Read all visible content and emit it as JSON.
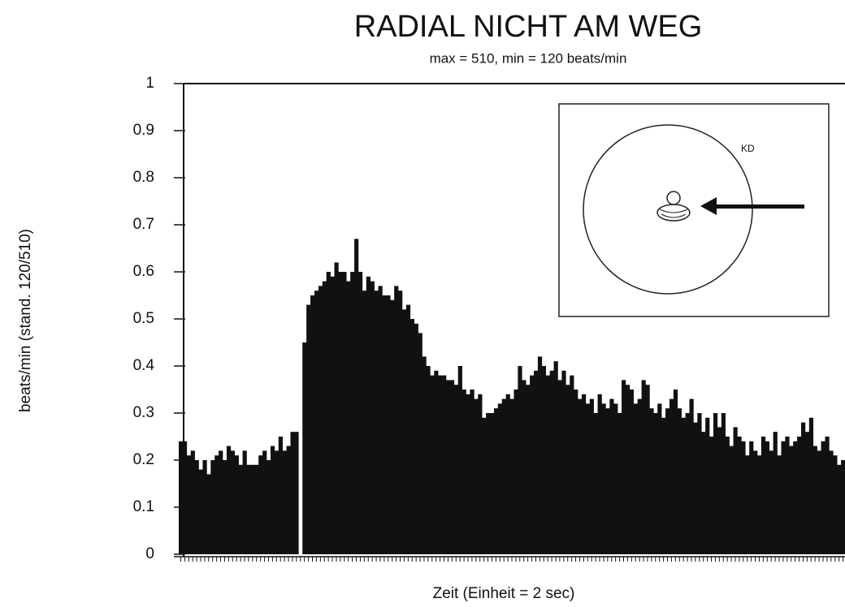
{
  "chart_data": {
    "type": "bar",
    "title": "RADIAL NICHT AM WEG",
    "subtitle": "max = 510, min = 120 beats/min",
    "x_label": "Zeit (Einheit = 2 sec)",
    "y_label": "beats/min (stand. 120/510)",
    "annotation": "KD",
    "color": "#111111",
    "ylim": [
      0,
      1
    ],
    "yticks": [
      0,
      0.1,
      0.2,
      0.3,
      0.4,
      0.5,
      0.6,
      0.7,
      0.8,
      0.9,
      1
    ],
    "values": [
      0.24,
      0.24,
      0.21,
      0.22,
      0.2,
      0.18,
      0.2,
      0.17,
      0.2,
      0.21,
      0.22,
      0.2,
      0.23,
      0.22,
      0.21,
      0.19,
      0.22,
      0.19,
      0.19,
      0.19,
      0.21,
      0.22,
      0.2,
      0.23,
      0.22,
      0.25,
      0.22,
      0.23,
      0.26,
      0.26,
      0,
      0.45,
      0.53,
      0.55,
      0.56,
      0.57,
      0.58,
      0.6,
      0.59,
      0.62,
      0.6,
      0.6,
      0.58,
      0.6,
      0.67,
      0.6,
      0.56,
      0.59,
      0.58,
      0.56,
      0.57,
      0.55,
      0.55,
      0.54,
      0.57,
      0.56,
      0.52,
      0.53,
      0.5,
      0.49,
      0.47,
      0.42,
      0.4,
      0.38,
      0.39,
      0.38,
      0.38,
      0.37,
      0.37,
      0.36,
      0.4,
      0.35,
      0.34,
      0.35,
      0.33,
      0.34,
      0.29,
      0.3,
      0.3,
      0.31,
      0.32,
      0.33,
      0.34,
      0.33,
      0.35,
      0.4,
      0.37,
      0.36,
      0.38,
      0.39,
      0.42,
      0.4,
      0.38,
      0.39,
      0.41,
      0.37,
      0.39,
      0.36,
      0.38,
      0.35,
      0.33,
      0.34,
      0.32,
      0.33,
      0.3,
      0.34,
      0.32,
      0.31,
      0.33,
      0.32,
      0.3,
      0.37,
      0.36,
      0.35,
      0.32,
      0.33,
      0.37,
      0.36,
      0.31,
      0.3,
      0.32,
      0.29,
      0.31,
      0.33,
      0.35,
      0.31,
      0.29,
      0.3,
      0.33,
      0.28,
      0.3,
      0.26,
      0.29,
      0.25,
      0.3,
      0.27,
      0.3,
      0.25,
      0.23,
      0.27,
      0.25,
      0.24,
      0.21,
      0.24,
      0.22,
      0.21,
      0.25,
      0.24,
      0.22,
      0.26,
      0.21,
      0.24,
      0.25,
      0.23,
      0.24,
      0.25,
      0.28,
      0.26,
      0.29,
      0.23,
      0.22,
      0.24,
      0.25,
      0.22,
      0.21,
      0.19,
      0.2
    ]
  }
}
